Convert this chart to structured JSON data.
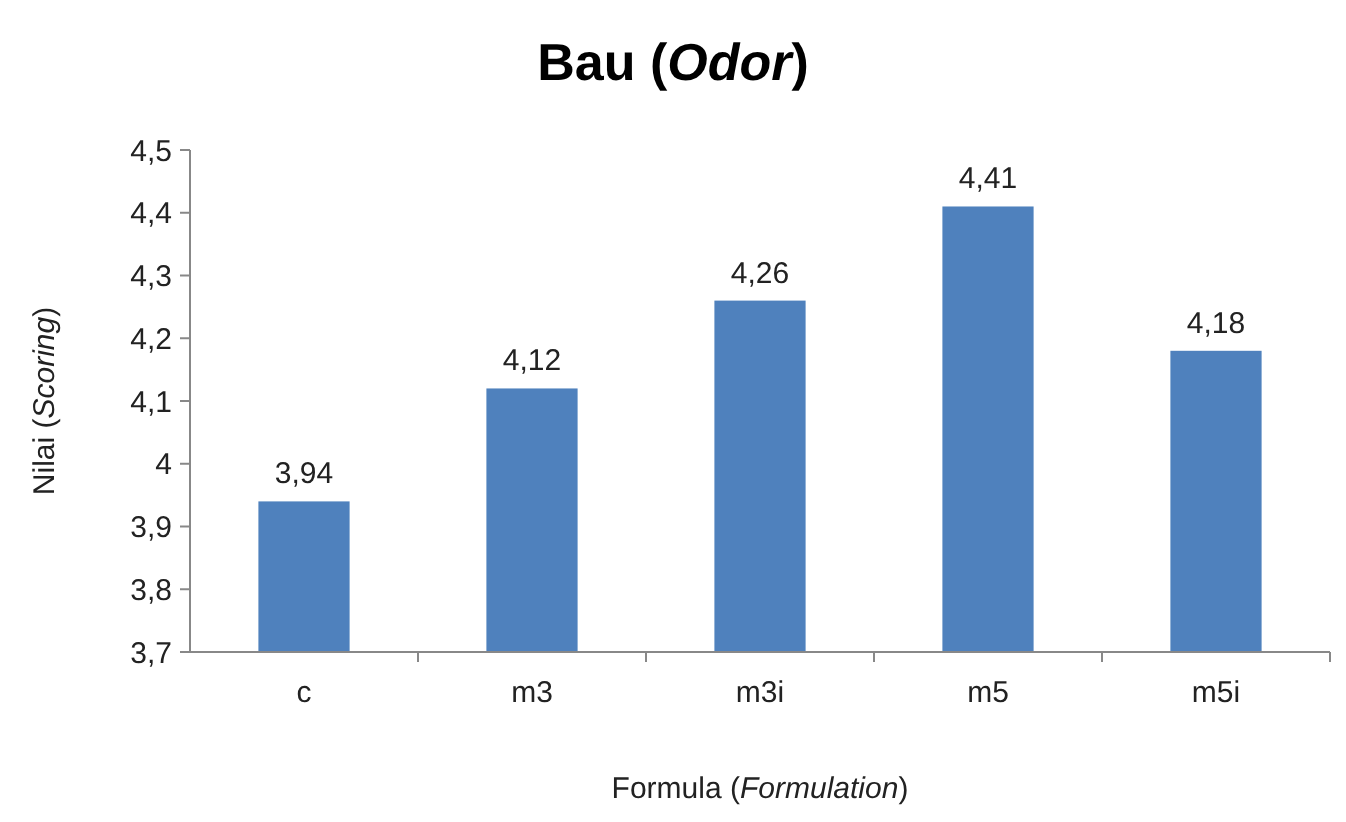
{
  "chart_data": {
    "type": "bar",
    "title": "Bau (Odor)",
    "xlabel": "Formula (Formulation)",
    "ylabel": "Nilai (Scoring)",
    "categories": [
      "c",
      "m3",
      "m3i",
      "m5",
      "m5i"
    ],
    "values": [
      3.94,
      4.12,
      4.26,
      4.41,
      4.18
    ],
    "value_labels": [
      "3,94",
      "4,12",
      "4,26",
      "4,41",
      "4,18"
    ],
    "color": "#4f81bd",
    "ylim": [
      3.7,
      4.5
    ],
    "yticks": [
      {
        "value": 3.7,
        "label": "3,7"
      },
      {
        "value": 3.8,
        "label": "3,8"
      },
      {
        "value": 3.9,
        "label": "3,9"
      },
      {
        "value": 4,
        "label": "4"
      },
      {
        "value": 4.1,
        "label": "4,1"
      },
      {
        "value": 4.2,
        "label": "4,2"
      },
      {
        "value": 4.3,
        "label": "4,3"
      },
      {
        "value": 4.4,
        "label": "4,4"
      },
      {
        "value": 4.5,
        "label": "4,5"
      }
    ],
    "grid": false
  }
}
